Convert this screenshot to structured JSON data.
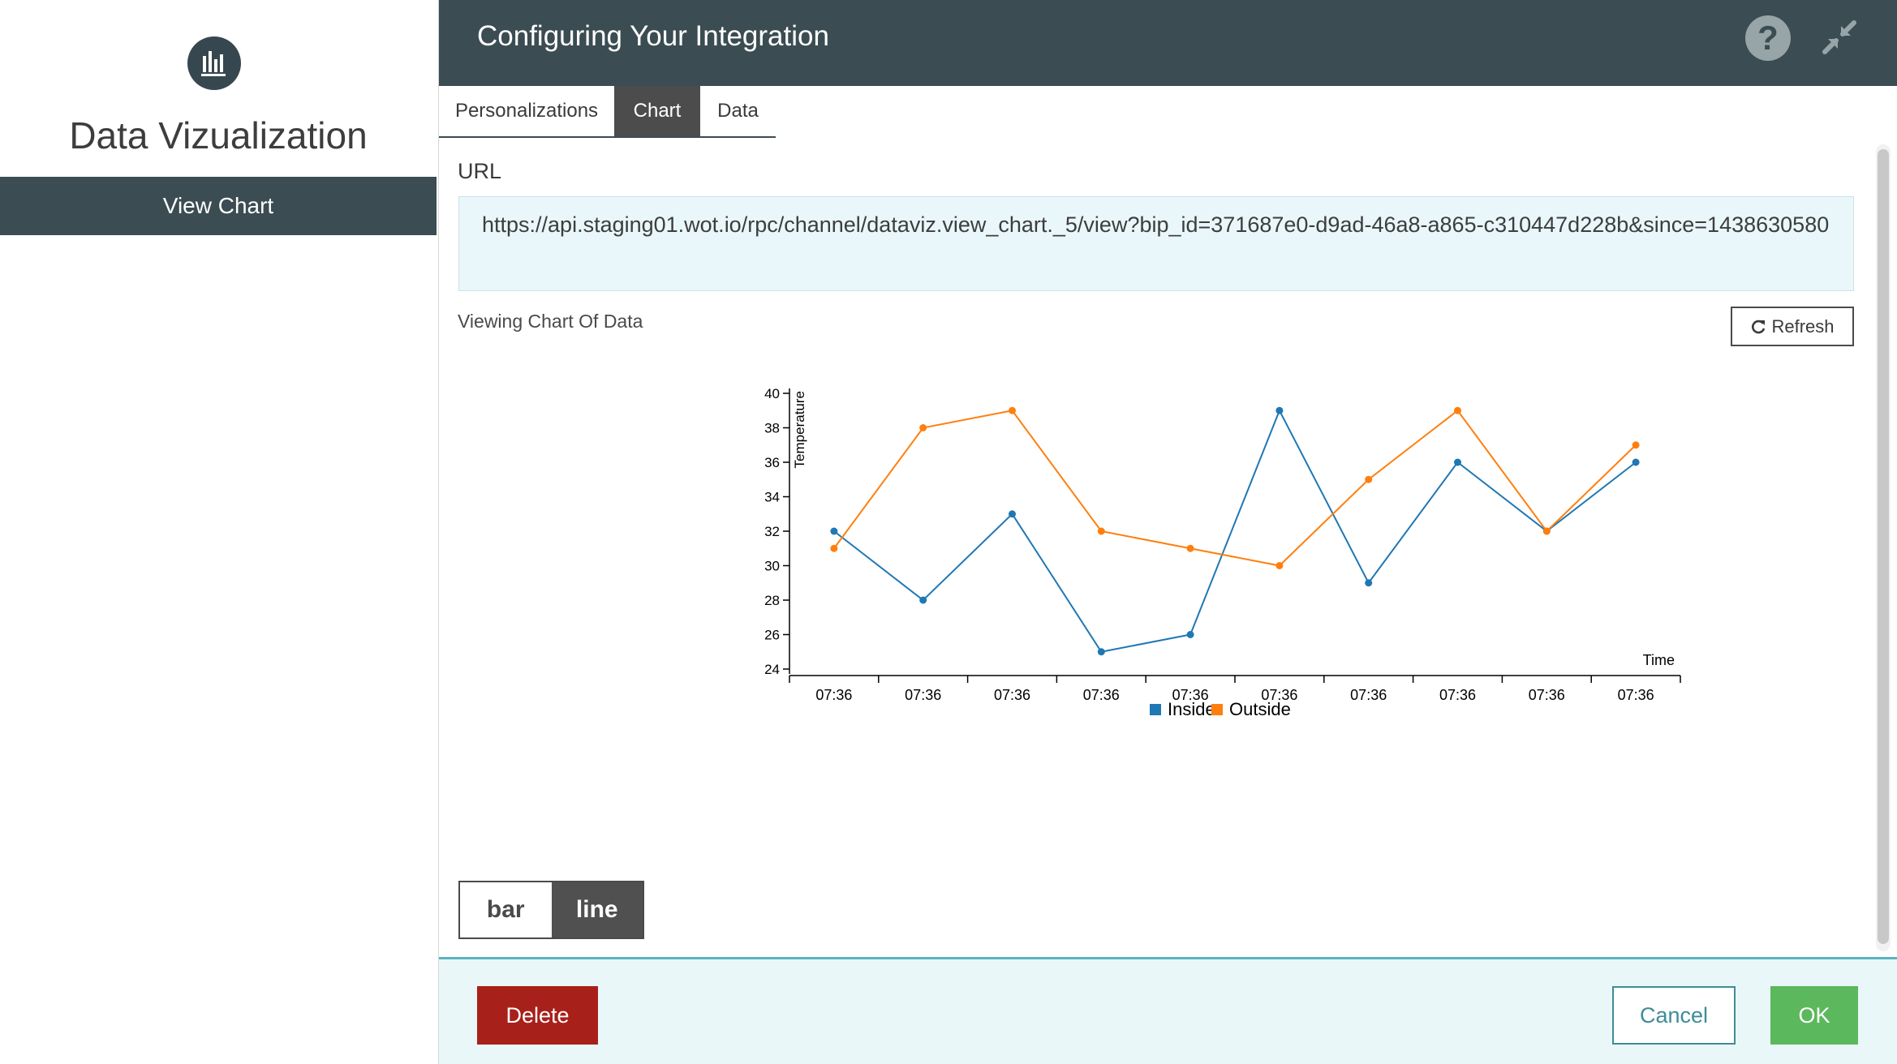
{
  "sidebar": {
    "app_title": "Data Vizualization",
    "icon": "bar-chart-icon",
    "nav_item": "View Chart"
  },
  "header": {
    "title": "Configuring Your Integration",
    "help_icon": "?",
    "collapse_icon": "collapse-icon"
  },
  "tabs": [
    {
      "label": "Personalizations",
      "active": false
    },
    {
      "label": "Chart",
      "active": true
    },
    {
      "label": "Data",
      "active": false
    }
  ],
  "url_section": {
    "label": "URL",
    "value": "https://api.staging01.wot.io/rpc/channel/dataviz.view_chart._5/view?bip_id=371687e0-d9ad-46a8-a865-c310447d228b&since=1438630580"
  },
  "chart_section": {
    "label": "Viewing Chart Of Data",
    "refresh_label": "Refresh",
    "refresh_icon": "refresh-icon"
  },
  "chart_data": {
    "type": "line",
    "xlabel": "Time",
    "ylabel": "Temperature",
    "ylim": [
      24,
      40
    ],
    "yticks": [
      24,
      26,
      28,
      30,
      32,
      34,
      36,
      38,
      40
    ],
    "categories": [
      "07:36",
      "07:36",
      "07:36",
      "07:36",
      "07:36",
      "07:36",
      "07:36",
      "07:36",
      "07:36",
      "07:36"
    ],
    "legend_position": "bottom",
    "grid": false,
    "series": [
      {
        "name": "Inside",
        "color": "#1f77b4",
        "values": [
          32,
          28,
          33,
          25,
          26,
          39,
          29,
          36,
          32,
          36
        ]
      },
      {
        "name": "Outside",
        "color": "#ff7f0e",
        "values": [
          31,
          38,
          39,
          32,
          31,
          30,
          35,
          39,
          32,
          37
        ]
      }
    ]
  },
  "chart_type_toggle": {
    "bar_label": "bar",
    "line_label": "line",
    "selected": "line"
  },
  "footer": {
    "delete_label": "Delete",
    "cancel_label": "Cancel",
    "ok_label": "OK"
  },
  "colors": {
    "header_bg": "#3b4c52",
    "delete": "#a8201a",
    "ok": "#5cb85c",
    "cancel": "#3e8c97",
    "url_bg": "#e9f7fa"
  }
}
